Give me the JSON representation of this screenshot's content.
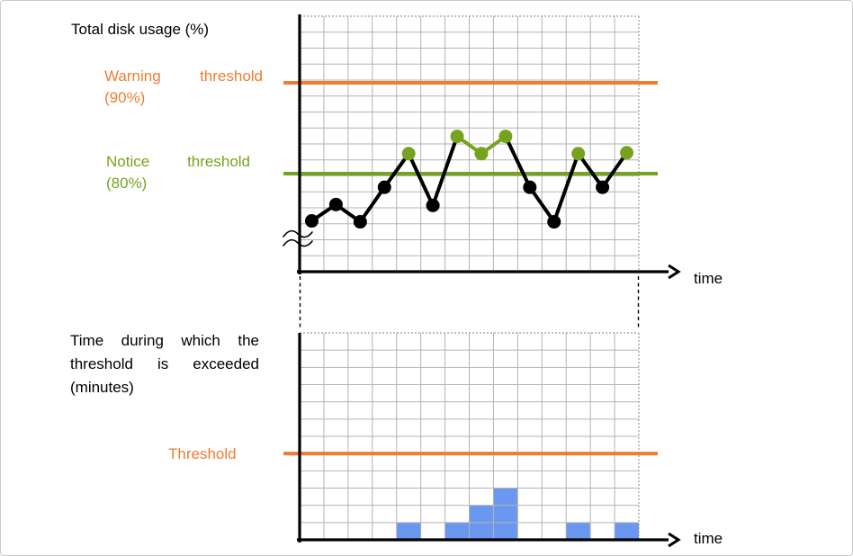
{
  "styles": {
    "background": "#FFFFFF",
    "grid_color": "#B3B3B3",
    "grid_border_dotted_color": "#999999",
    "axis_color": "#000000",
    "text_color": "#000000",
    "connector_color": "#000000"
  },
  "chart_data": [
    {
      "type": "line",
      "title": "Total disk usage (%)",
      "xlabel": "time",
      "ylabel": "Total disk usage (%)",
      "x": [
        1,
        2,
        3,
        4,
        5,
        6,
        7,
        8,
        9,
        10,
        11,
        12,
        13,
        14
      ],
      "values": [
        74.8,
        76.6,
        74.7,
        78.5,
        82.2,
        76.5,
        84.1,
        82.2,
        84.1,
        78.5,
        74.7,
        82.2,
        78.5,
        82.3
      ],
      "unit": "%",
      "thresholds": [
        {
          "name": "warning",
          "label": "Warning threshold (90%)",
          "value": 90,
          "color": "#ED7D31"
        },
        {
          "name": "notice",
          "label": "Notice threshold (80%)",
          "value": 80,
          "color": "#76A31F"
        }
      ],
      "series_color": "#000000",
      "normal_point_color": "#000000",
      "exceed_point_color": "#76A31F",
      "axis_break": true,
      "grid": true,
      "legend": "none",
      "ylim_visible": [
        69,
        97
      ]
    },
    {
      "type": "bar",
      "title": "Time during which the threshold is exceeded (minutes)",
      "xlabel": "time",
      "ylabel": "Time during which the threshold is exceeded (minutes)",
      "x": [
        1,
        2,
        3,
        4,
        5,
        6,
        7,
        8,
        9,
        10,
        11,
        12,
        13,
        14
      ],
      "values": [
        0,
        0,
        0,
        0,
        1,
        0,
        1,
        2,
        3,
        0,
        0,
        1,
        0,
        1
      ],
      "unit": "minutes",
      "bar_color": "#6A97F0",
      "threshold": {
        "name": "alert",
        "label": "Threshold",
        "value": 5,
        "color": "#ED7D31"
      },
      "ylim": [
        0,
        12
      ],
      "grid": true,
      "legend": "none"
    }
  ]
}
